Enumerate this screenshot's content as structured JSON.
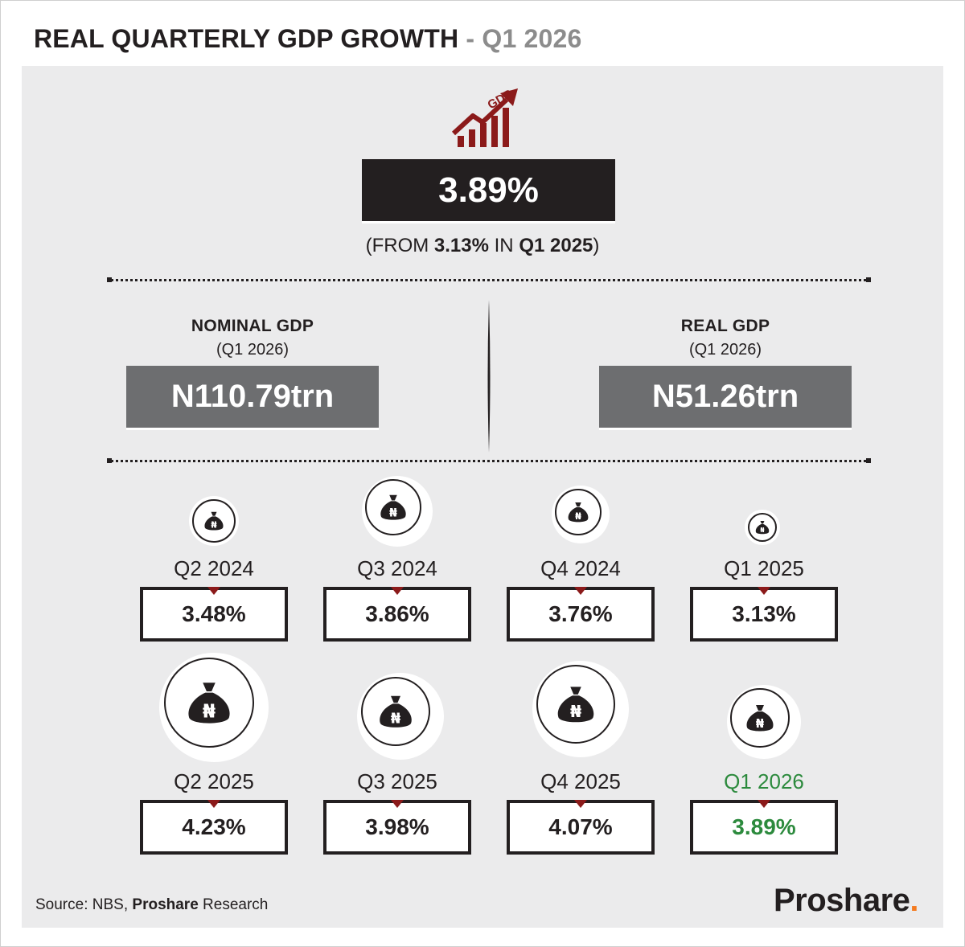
{
  "title": {
    "main": "REAL QUARTERLY GDP GROWTH",
    "separator": "-",
    "sub": "Q1 2026"
  },
  "headline": {
    "icon": "gdp-growth-chart-icon",
    "icon_text": "GDP",
    "value": "3.89%",
    "from_prefix": "(FROM ",
    "from_value": "3.13%",
    "from_mid": " IN ",
    "from_period": "Q1 2025",
    "from_suffix": ")"
  },
  "nominal_gdp": {
    "label": "NOMINAL GDP",
    "period": "(Q1 2026)",
    "value": "N110.79trn"
  },
  "real_gdp": {
    "label": "REAL GDP",
    "period": "(Q1 2026)",
    "value": "N51.26trn"
  },
  "quarters": [
    {
      "label": "Q2 2024",
      "value": "3.48%",
      "icon": "money-bag-naira-icon"
    },
    {
      "label": "Q3 2024",
      "value": "3.86%",
      "icon": "money-bag-naira-icon"
    },
    {
      "label": "Q4 2024",
      "value": "3.76%",
      "icon": "money-bag-naira-icon"
    },
    {
      "label": "Q1 2025",
      "value": "3.13%",
      "icon": "money-bag-naira-icon"
    },
    {
      "label": "Q2 2025",
      "value": "4.23%",
      "icon": "money-bag-naira-icon"
    },
    {
      "label": "Q3 2025",
      "value": "3.98%",
      "icon": "money-bag-naira-icon"
    },
    {
      "label": "Q4 2025",
      "value": "4.07%",
      "icon": "money-bag-naira-icon"
    },
    {
      "label": "Q1 2026",
      "value": "3.89%",
      "icon": "money-bag-naira-icon",
      "highlight": true
    }
  ],
  "footer": {
    "source_prefix": "Source: NBS, ",
    "source_bold": "Proshare",
    "source_suffix": " Research",
    "brand": "Proshare",
    "brand_dot": "."
  },
  "colors": {
    "dark": "#231f20",
    "accent_red": "#8b1a1a",
    "highlight_green": "#2c8a3d",
    "panel_bg": "#ebebec",
    "gray_box": "#6d6e70",
    "brand_orange": "#f47b20"
  }
}
